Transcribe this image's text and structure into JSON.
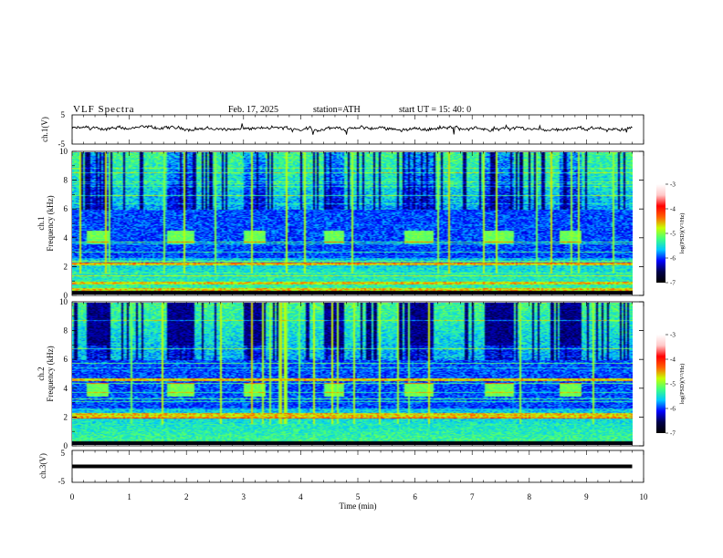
{
  "header": {
    "title": "VLF  Spectra",
    "date": "Feb. 17, 2025",
    "station": "station=ATH",
    "start_ut": "start  UT  =   15: 40: 0"
  },
  "chart_data": [
    {
      "type": "line",
      "panel": "ch1-waveform",
      "ylabel": "ch.1(V)",
      "ylim": [
        -5,
        5
      ],
      "y_ticks": [
        "5",
        "-5"
      ],
      "x_range_min": [
        0,
        9.8
      ],
      "baseline_v": 0.3,
      "color": "#000000"
    },
    {
      "type": "heatmap",
      "panel": "ch1-spectrogram",
      "ylabel": "ch.1\nFrequency  (kHz)",
      "ylim_khz": [
        0,
        10
      ],
      "y_ticks": [
        "0",
        "2",
        "4",
        "6",
        "8",
        "10"
      ],
      "x_range_min": [
        0,
        9.8
      ],
      "bursts_min": [
        [
          0.25,
          0.62
        ],
        [
          1.63,
          2.13
        ],
        [
          2.97,
          3.38
        ],
        [
          4.38,
          4.73
        ],
        [
          5.8,
          6.3
        ],
        [
          7.2,
          7.72
        ],
        [
          8.5,
          8.9
        ]
      ],
      "burst_band_khz": [
        3.6,
        4.5
      ],
      "strong_lines_khz": [
        2.2,
        0.85,
        0.4
      ]
    },
    {
      "type": "heatmap",
      "panel": "ch2-spectrogram",
      "ylabel": "ch.2\nFrequency  (kHz)",
      "ylim_khz": [
        0,
        10
      ],
      "y_ticks": [
        "0",
        "2",
        "4",
        "6",
        "8",
        "10"
      ],
      "x_range_min": [
        0,
        9.8
      ],
      "bursts_min": [
        [
          0.25,
          0.62
        ],
        [
          1.63,
          2.13
        ],
        [
          2.97,
          3.38
        ],
        [
          4.38,
          4.73
        ],
        [
          5.8,
          6.3
        ],
        [
          7.2,
          7.72
        ],
        [
          8.5,
          8.9
        ]
      ],
      "burst_band_khz": [
        3.4,
        4.4
      ],
      "strong_lines_khz": [
        4.6,
        2.2,
        2.0
      ]
    },
    {
      "type": "line",
      "panel": "ch3-waveform",
      "ylabel": "ch.3(V)",
      "ylim": [
        -5,
        5
      ],
      "y_ticks": [
        "5",
        "-5"
      ],
      "x_range_min": [
        0,
        9.8
      ],
      "baseline_v": 0.0,
      "color": "#000000"
    }
  ],
  "x_axis": {
    "label": "Time  (min)",
    "ticks": [
      "0",
      "1",
      "2",
      "3",
      "4",
      "5",
      "6",
      "7",
      "8",
      "9",
      "10"
    ],
    "range": [
      0,
      10
    ]
  },
  "colorbar": {
    "label": "log(PSD)(V²/Hz)",
    "ticks": [
      "-3",
      "-4",
      "-5",
      "-6",
      "-7"
    ],
    "range": [
      -7,
      -3
    ],
    "colors": [
      "#000000",
      "#00004a",
      "#0000ff",
      "#00c8ff",
      "#40ff80",
      "#c8ff00",
      "#ff6000",
      "#ff0000",
      "#ffc8c8",
      "#ffffff"
    ]
  }
}
